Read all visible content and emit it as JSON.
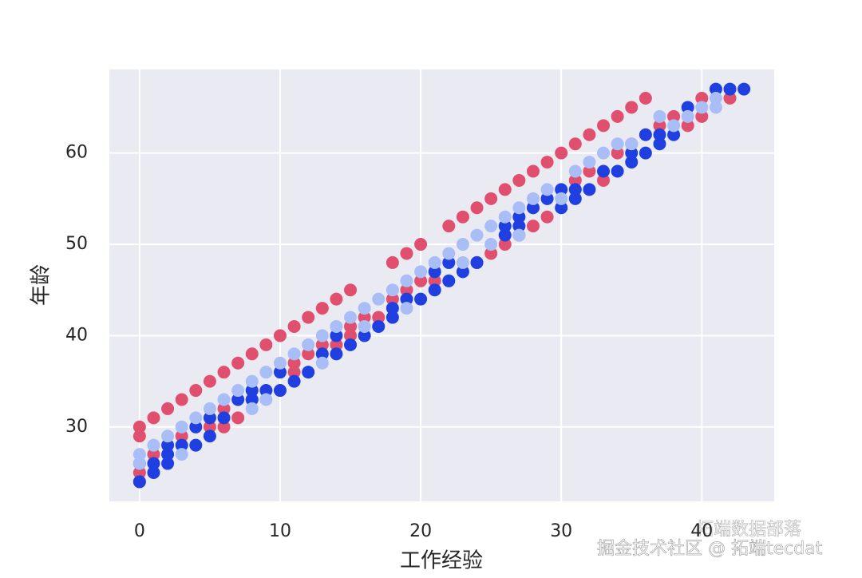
{
  "chart_data": {
    "type": "scatter",
    "xlabel": "工作经验",
    "ylabel": "年龄",
    "xlim": [
      -2.15,
      45.15
    ],
    "ylim": [
      21.85,
      69.15
    ],
    "xticks": [
      0,
      10,
      20,
      30,
      40
    ],
    "yticks": [
      30,
      40,
      50,
      60
    ],
    "grid": true,
    "background": "#eaeaf2",
    "series": [
      {
        "color": "#e0506e",
        "x": [
          0,
          1,
          2,
          3,
          4,
          5,
          6,
          7,
          8,
          9,
          10,
          11,
          12,
          13,
          14,
          15,
          18,
          19,
          20,
          22,
          23,
          24,
          25,
          26,
          27,
          28,
          29,
          30,
          31,
          32,
          33,
          34,
          35,
          36,
          0,
          0,
          0,
          1,
          3,
          5,
          6,
          6,
          7,
          8,
          11,
          11,
          12,
          13,
          14,
          15,
          15,
          16,
          17,
          18,
          19,
          20,
          21,
          24,
          25,
          26,
          27,
          28,
          28,
          29,
          31,
          32,
          33,
          34,
          35,
          37,
          38,
          39,
          40,
          40,
          42
        ],
        "values": [
          30,
          31,
          32,
          33,
          34,
          35,
          36,
          37,
          38,
          39,
          40,
          41,
          42,
          43,
          44,
          45,
          48,
          49,
          50,
          52,
          53,
          54,
          55,
          56,
          57,
          58,
          59,
          60,
          61,
          62,
          63,
          64,
          65,
          66,
          24,
          25,
          29,
          27,
          29,
          30,
          30,
          32,
          31,
          33,
          36,
          37,
          38,
          39,
          39,
          40,
          41,
          42,
          42,
          44,
          45,
          46,
          46,
          48,
          49,
          50,
          51,
          52,
          54,
          53,
          57,
          58,
          57,
          60,
          61,
          63,
          64,
          63,
          64,
          66,
          66
        ]
      },
      {
        "color": "#1f3fe0",
        "x": [
          0,
          0,
          1,
          1,
          2,
          2,
          2,
          3,
          4,
          4,
          5,
          5,
          6,
          7,
          8,
          8,
          9,
          10,
          10,
          11,
          12,
          13,
          14,
          14,
          15,
          16,
          17,
          18,
          18,
          19,
          20,
          21,
          21,
          22,
          22,
          23,
          24,
          26,
          26,
          27,
          27,
          28,
          29,
          30,
          30,
          31,
          31,
          32,
          33,
          34,
          35,
          35,
          36,
          36,
          37,
          37,
          38,
          39,
          41,
          42,
          43
        ],
        "values": [
          24,
          26,
          25,
          26,
          26,
          27,
          28,
          28,
          28,
          30,
          29,
          31,
          31,
          33,
          33,
          34,
          34,
          34,
          36,
          35,
          36,
          38,
          38,
          40,
          39,
          40,
          41,
          42,
          43,
          44,
          44,
          45,
          47,
          46,
          48,
          47,
          48,
          51,
          52,
          52,
          53,
          54,
          55,
          54,
          56,
          55,
          56,
          56,
          58,
          58,
          59,
          60,
          60,
          62,
          61,
          62,
          62,
          65,
          67,
          67,
          67
        ]
      },
      {
        "color": "#a9bef6",
        "x": [
          0,
          0,
          1,
          2,
          3,
          3,
          4,
          5,
          6,
          7,
          8,
          8,
          9,
          9,
          10,
          11,
          12,
          13,
          13,
          14,
          15,
          16,
          16,
          17,
          18,
          19,
          19,
          20,
          21,
          22,
          23,
          23,
          24,
          25,
          25,
          26,
          27,
          27,
          28,
          29,
          30,
          31,
          32,
          33,
          34,
          35,
          37,
          38,
          39,
          40,
          41,
          41
        ],
        "values": [
          26,
          27,
          28,
          29,
          27,
          30,
          31,
          32,
          33,
          34,
          32,
          35,
          33,
          36,
          37,
          38,
          39,
          37,
          40,
          41,
          42,
          41,
          43,
          44,
          45,
          43,
          46,
          47,
          48,
          49,
          48,
          50,
          51,
          50,
          52,
          53,
          51,
          54,
          55,
          56,
          55,
          58,
          59,
          60,
          61,
          61,
          64,
          63,
          64,
          65,
          65,
          66
        ]
      }
    ]
  },
  "watermark": {
    "primary": "掘金技术社区 @ 拓端tecdat",
    "secondary": "拓端数据部落"
  }
}
